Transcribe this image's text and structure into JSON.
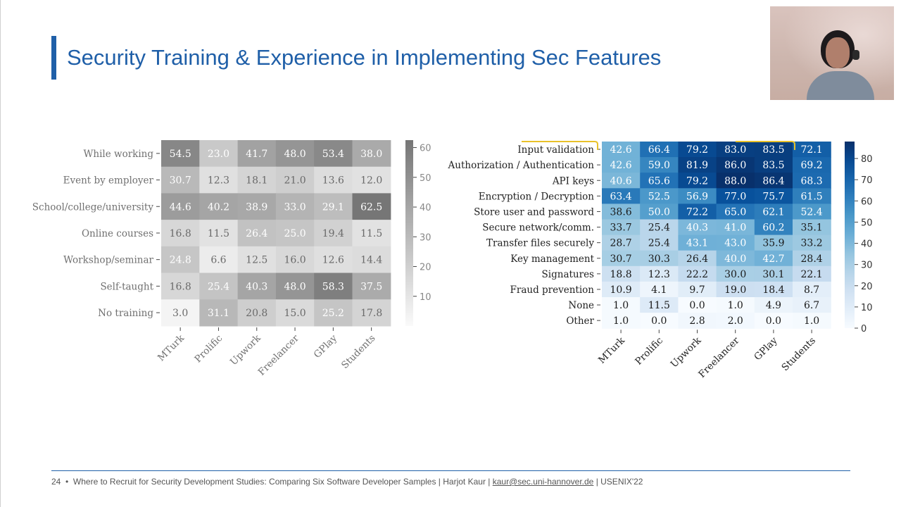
{
  "slide": {
    "title": "Security Training & Experience in Implementing Sec Features",
    "page_number": "24",
    "footer_bullet": "•",
    "footer_text": "Where to Recruit for Security Development Studies: Comparing Six Software Developer Samples | Harjot Kaur |",
    "footer_email": "kaur@sec.uni-hannover.de",
    "footer_venue": "| USENIX'22"
  },
  "chart_data": [
    {
      "type": "heatmap",
      "colormap": "greys",
      "columns": [
        "MTurk",
        "Prolific",
        "Upwork",
        "Freelancer",
        "GPlay",
        "Students"
      ],
      "rows": [
        "While working",
        "Event by employer",
        "School/college/university",
        "Online courses",
        "Workshop/seminar",
        "Self-taught",
        "No training"
      ],
      "values": [
        [
          54.5,
          23.0,
          41.7,
          48.0,
          53.4,
          38.0
        ],
        [
          30.7,
          12.3,
          18.1,
          21.0,
          13.6,
          12.0
        ],
        [
          44.6,
          40.2,
          38.9,
          33.0,
          29.1,
          62.5
        ],
        [
          16.8,
          11.5,
          26.4,
          25.0,
          19.4,
          11.5
        ],
        [
          24.8,
          6.6,
          12.5,
          16.0,
          12.6,
          14.4
        ],
        [
          16.8,
          25.4,
          40.3,
          48.0,
          58.3,
          37.5
        ],
        [
          3.0,
          31.1,
          20.8,
          15.0,
          25.2,
          17.8
        ]
      ],
      "colorbar": {
        "min": 0,
        "max": 62.5,
        "ticks": [
          10,
          20,
          30,
          40,
          50,
          60
        ]
      }
    },
    {
      "type": "heatmap",
      "colormap": "blues",
      "columns": [
        "MTurk",
        "Prolific",
        "Upwork",
        "Freelancer",
        "GPlay",
        "Students"
      ],
      "rows": [
        "Input validation",
        "Authorization / Authentication",
        "API keys",
        "Encryption / Decryption",
        "Store user and password",
        "Secure network/comm.",
        "Transfer files securely",
        "Key management",
        "Signatures",
        "Fraud prevention",
        "None",
        "Other"
      ],
      "values": [
        [
          42.6,
          66.4,
          79.2,
          83.0,
          83.5,
          72.1
        ],
        [
          42.6,
          59.0,
          81.9,
          86.0,
          83.5,
          69.2
        ],
        [
          40.6,
          65.6,
          79.2,
          88.0,
          86.4,
          68.3
        ],
        [
          63.4,
          52.5,
          56.9,
          77.0,
          75.7,
          61.5
        ],
        [
          38.6,
          50.0,
          72.2,
          65.0,
          62.1,
          52.4
        ],
        [
          33.7,
          25.4,
          40.3,
          41.0,
          60.2,
          35.1
        ],
        [
          28.7,
          25.4,
          43.1,
          43.0,
          35.9,
          33.2
        ],
        [
          30.7,
          30.3,
          26.4,
          40.0,
          42.7,
          28.4
        ],
        [
          18.8,
          12.3,
          22.2,
          30.0,
          30.1,
          22.1
        ],
        [
          10.9,
          4.1,
          9.7,
          19.0,
          18.4,
          8.7
        ],
        [
          1.0,
          11.5,
          0.0,
          1.0,
          4.9,
          6.7
        ],
        [
          1.0,
          0.0,
          2.8,
          2.0,
          0.0,
          1.0
        ]
      ],
      "colorbar": {
        "min": 0,
        "max": 88,
        "ticks": [
          0,
          10,
          20,
          30,
          40,
          50,
          60,
          70,
          80
        ]
      }
    }
  ]
}
